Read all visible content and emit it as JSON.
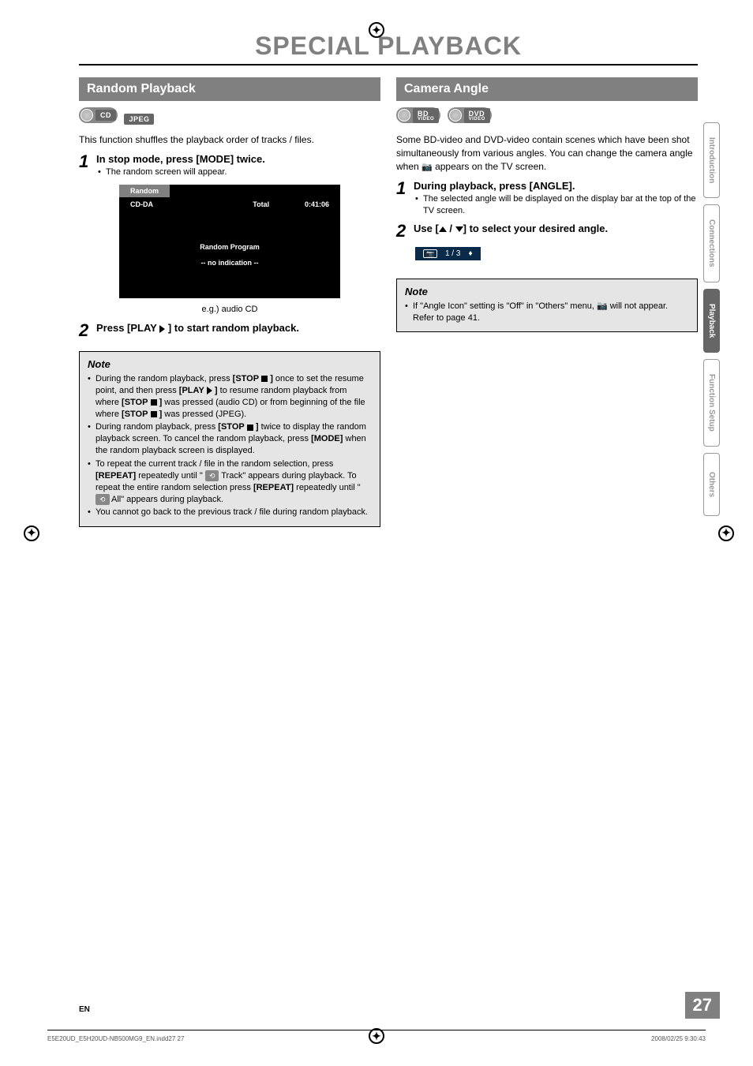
{
  "page": {
    "title": "SPECIAL PLAYBACK",
    "number": "27",
    "lang": "EN",
    "footer_file": "E5E20UD_E5H20UD-NB500MG9_EN.indd27   27",
    "footer_date": "2008/02/25   9:30:43"
  },
  "side_tabs": [
    "Introduction",
    "Connections",
    "Playback",
    "Function Setup",
    "Others"
  ],
  "side_tab_active_index": 2,
  "left": {
    "header": "Random Playback",
    "badges": [
      "CD",
      "JPEG"
    ],
    "intro": "This function shuffles the playback order of tracks / files.",
    "step1_title": "In stop mode, press [MODE] twice.",
    "step1_sub": "The random screen will appear.",
    "screen": {
      "tab": "Random",
      "row_left": "CD-DA",
      "row_mid": "Total",
      "row_right": "0:41:06",
      "line1": "Random Program",
      "line2": "-- no indication --",
      "caption": "e.g.) audio CD"
    },
    "step2_title_a": "Press [PLAY ",
    "step2_title_b": " ] to start random playback.",
    "note_title": "Note",
    "notes": [
      {
        "pre": "During the random playback, press ",
        "b1": "[STOP",
        "mid1": " ",
        "sym1": "stop",
        "b1b": " ]",
        "mid2": " once to set the resume point, and then press ",
        "b2": "[PLAY",
        "sym2": "play",
        "b2b": " ]",
        "mid3": " to resume random playback from where ",
        "b3": "[STOP",
        "sym3": "stop",
        "b3b": " ]",
        "mid4": " was pressed (audio CD) or from beginning of the file where ",
        "b4": "[STOP",
        "sym4": "stop",
        "b4b": " ]",
        "post": " was pressed (JPEG)."
      },
      {
        "pre": "During random playback, press ",
        "b1": "[STOP",
        "sym1": "stop",
        "b1b": " ]",
        "mid1": " twice to display the random playback screen. To cancel the random playback, press ",
        "b2": "[MODE]",
        "post": " when the random playback screen is displayed."
      },
      {
        "pre": "To repeat the current track / file in the random selection, press ",
        "b1": "[REPEAT]",
        "mid1": " repeatedly until \" ",
        "badge1": "⟲",
        "mid2": " Track\" appears during playback. To repeat the entire random selection press ",
        "b2": "[REPEAT]",
        "mid3": " repeatedly until \" ",
        "badge2": "⟲",
        "post": " All\" appears during playback."
      },
      {
        "pre": "You cannot go back to the previous track / file during random playback."
      }
    ]
  },
  "right": {
    "header": "Camera Angle",
    "badges": [
      {
        "t": "BD",
        "s": "VIDEO"
      },
      {
        "t": "DVD",
        "s": "VIDEO"
      }
    ],
    "intro_a": "Some BD-video and DVD-video contain scenes which have been shot simultaneously from various angles. You can change the camera angle when ",
    "intro_b": " appears on the TV screen.",
    "step1_title": "During playback, press [ANGLE].",
    "step1_sub": "The selected angle will be displayed on the display bar at the top of the TV screen.",
    "step2_title_a": "Use [",
    "step2_title_b": " / ",
    "step2_title_c": "] to select your desired angle.",
    "angle_bar_val": "1 / 3",
    "note_title": "Note",
    "note1_a": "If \"Angle Icon\" setting is \"Off\" in \"Others\" menu, ",
    "note1_b": " will not appear. Refer to page 41."
  }
}
